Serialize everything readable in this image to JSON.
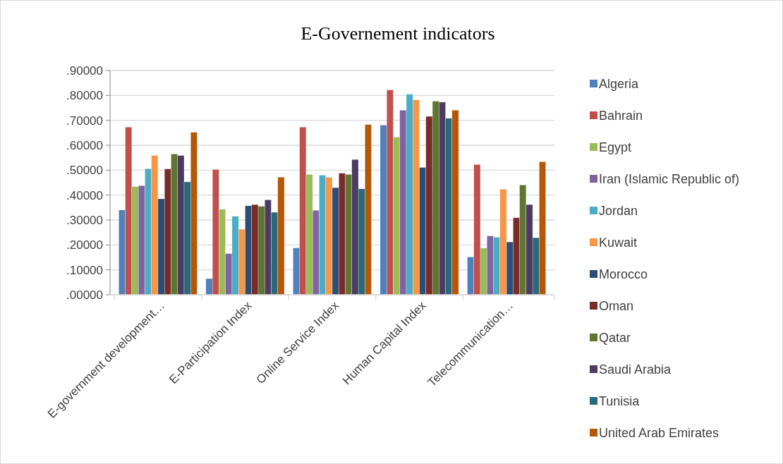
{
  "chart_data": {
    "type": "bar",
    "title": "E-Governement indicators",
    "categories": [
      "E-government development…",
      "E-Participation Index",
      "Online Service Index",
      "Human Capital Index",
      "Telecommunication…"
    ],
    "series": [
      {
        "name": "Algeria",
        "color": "#4f81bd",
        "values": [
          0.34,
          0.065,
          0.188,
          0.681,
          0.152
        ]
      },
      {
        "name": "Bahrain",
        "color": "#c0504d",
        "values": [
          0.673,
          0.503,
          0.673,
          0.822,
          0.523
        ]
      },
      {
        "name": "Egypt",
        "color": "#9bbb59",
        "values": [
          0.434,
          0.343,
          0.483,
          0.633,
          0.187
        ]
      },
      {
        "name": "Iran (Islamic Republic of)",
        "color": "#8064a2",
        "values": [
          0.438,
          0.165,
          0.339,
          0.741,
          0.236
        ]
      },
      {
        "name": "Jordan",
        "color": "#4bacc6",
        "values": [
          0.506,
          0.315,
          0.48,
          0.805,
          0.231
        ]
      },
      {
        "name": "Kuwait",
        "color": "#f79646",
        "values": [
          0.559,
          0.263,
          0.471,
          0.782,
          0.424
        ]
      },
      {
        "name": "Morocco",
        "color": "#2c4d75",
        "values": [
          0.385,
          0.357,
          0.43,
          0.511,
          0.212
        ]
      },
      {
        "name": "Oman",
        "color": "#772c2a",
        "values": [
          0.505,
          0.362,
          0.488,
          0.716,
          0.309
        ]
      },
      {
        "name": "Qatar",
        "color": "#5f7530",
        "values": [
          0.565,
          0.355,
          0.483,
          0.777,
          0.441
        ]
      },
      {
        "name": "Saudi Arabia",
        "color": "#4d3b62",
        "values": [
          0.559,
          0.381,
          0.543,
          0.773,
          0.362
        ]
      },
      {
        "name": "Tunisia",
        "color": "#276a7c",
        "values": [
          0.453,
          0.331,
          0.425,
          0.708,
          0.229
        ]
      },
      {
        "name": "United Arab Emirates",
        "color": "#b65708",
        "values": [
          0.652,
          0.472,
          0.683,
          0.741,
          0.534
        ]
      }
    ],
    "ylim": [
      0,
      0.9
    ],
    "yticks": [
      {
        "value": 0,
        "label": ".00000"
      },
      {
        "value": 0.1,
        "label": ".10000"
      },
      {
        "value": 0.2,
        "label": ".20000"
      },
      {
        "value": 0.3,
        "label": ".30000"
      },
      {
        "value": 0.4,
        "label": ".40000"
      },
      {
        "value": 0.5,
        "label": ".50000"
      },
      {
        "value": 0.6,
        "label": ".60000"
      },
      {
        "value": 0.7,
        "label": ".70000"
      },
      {
        "value": 0.8,
        "label": ".80000"
      },
      {
        "value": 0.9,
        "label": ".90000"
      }
    ],
    "grid": "y",
    "legend": "right"
  }
}
